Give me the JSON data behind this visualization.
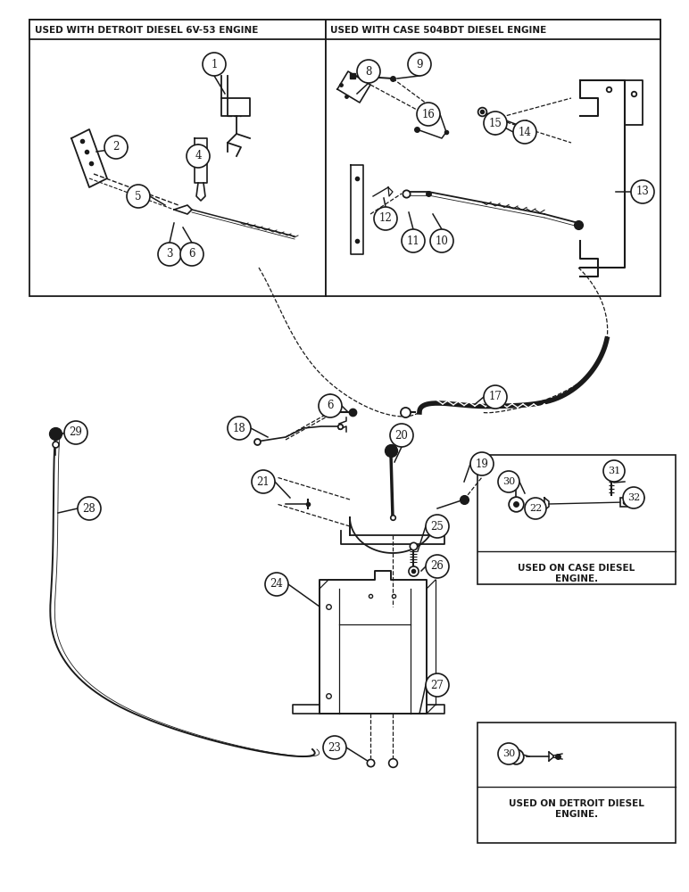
{
  "bg_color": "#ffffff",
  "lc": "#1a1a1a",
  "title_box1": "USED WITH DETROIT DIESEL 6V-53 ENGINE",
  "title_box2": "USED WITH CASE 504BDT DIESEL ENGINE",
  "inset1_text": "USED ON CASE DIESEL\nENGINE.",
  "inset2_text": "USED ON DETROIT DIESEL\nENGINE.",
  "fig_w": 7.72,
  "fig_h": 10.0
}
